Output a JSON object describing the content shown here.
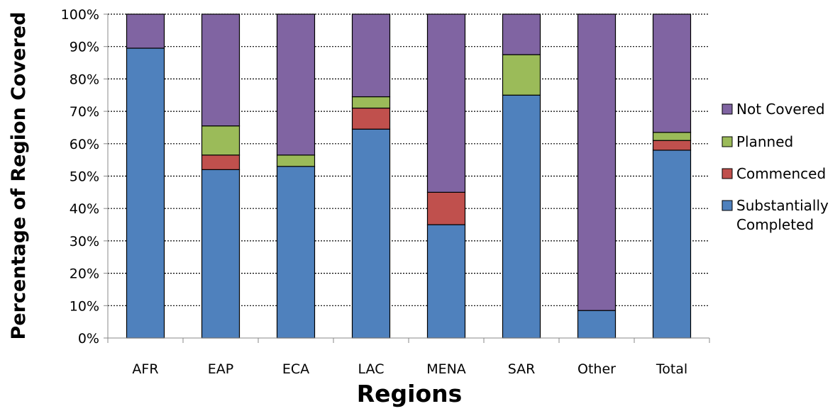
{
  "chart_data": {
    "type": "bar",
    "stacked": true,
    "percent_stacked": true,
    "title": "",
    "xlabel": "Regions",
    "ylabel": "Percentage of Region Covered",
    "ylim": [
      0,
      100
    ],
    "y_ticks": [
      "0%",
      "10%",
      "20%",
      "30%",
      "40%",
      "50%",
      "60%",
      "70%",
      "80%",
      "90%",
      "100%"
    ],
    "grid": "horizontal dotted",
    "legend_position": "right",
    "categories": [
      "AFR",
      "EAP",
      "ECA",
      "LAC",
      "MENA",
      "SAR",
      "Other",
      "Total"
    ],
    "series": [
      {
        "name": "Substantially Completed",
        "color": "#4F81BD",
        "values": [
          89.5,
          52,
          53,
          64.5,
          35,
          75,
          8.5,
          58
        ]
      },
      {
        "name": "Commenced",
        "color": "#C0504D",
        "values": [
          0,
          4.5,
          0,
          6.5,
          10,
          0,
          0,
          3
        ]
      },
      {
        "name": "Planned",
        "color": "#9BBB59",
        "values": [
          0,
          9,
          3.5,
          3.5,
          0,
          12.5,
          0,
          2.5
        ]
      },
      {
        "name": "Not Covered",
        "color": "#8064A2",
        "values": [
          10.5,
          34.5,
          43.5,
          25.5,
          55,
          12.5,
          91.5,
          36.5
        ]
      }
    ],
    "legend_order": [
      "Not Covered",
      "Planned",
      "Commenced",
      "Substantially Completed"
    ]
  }
}
